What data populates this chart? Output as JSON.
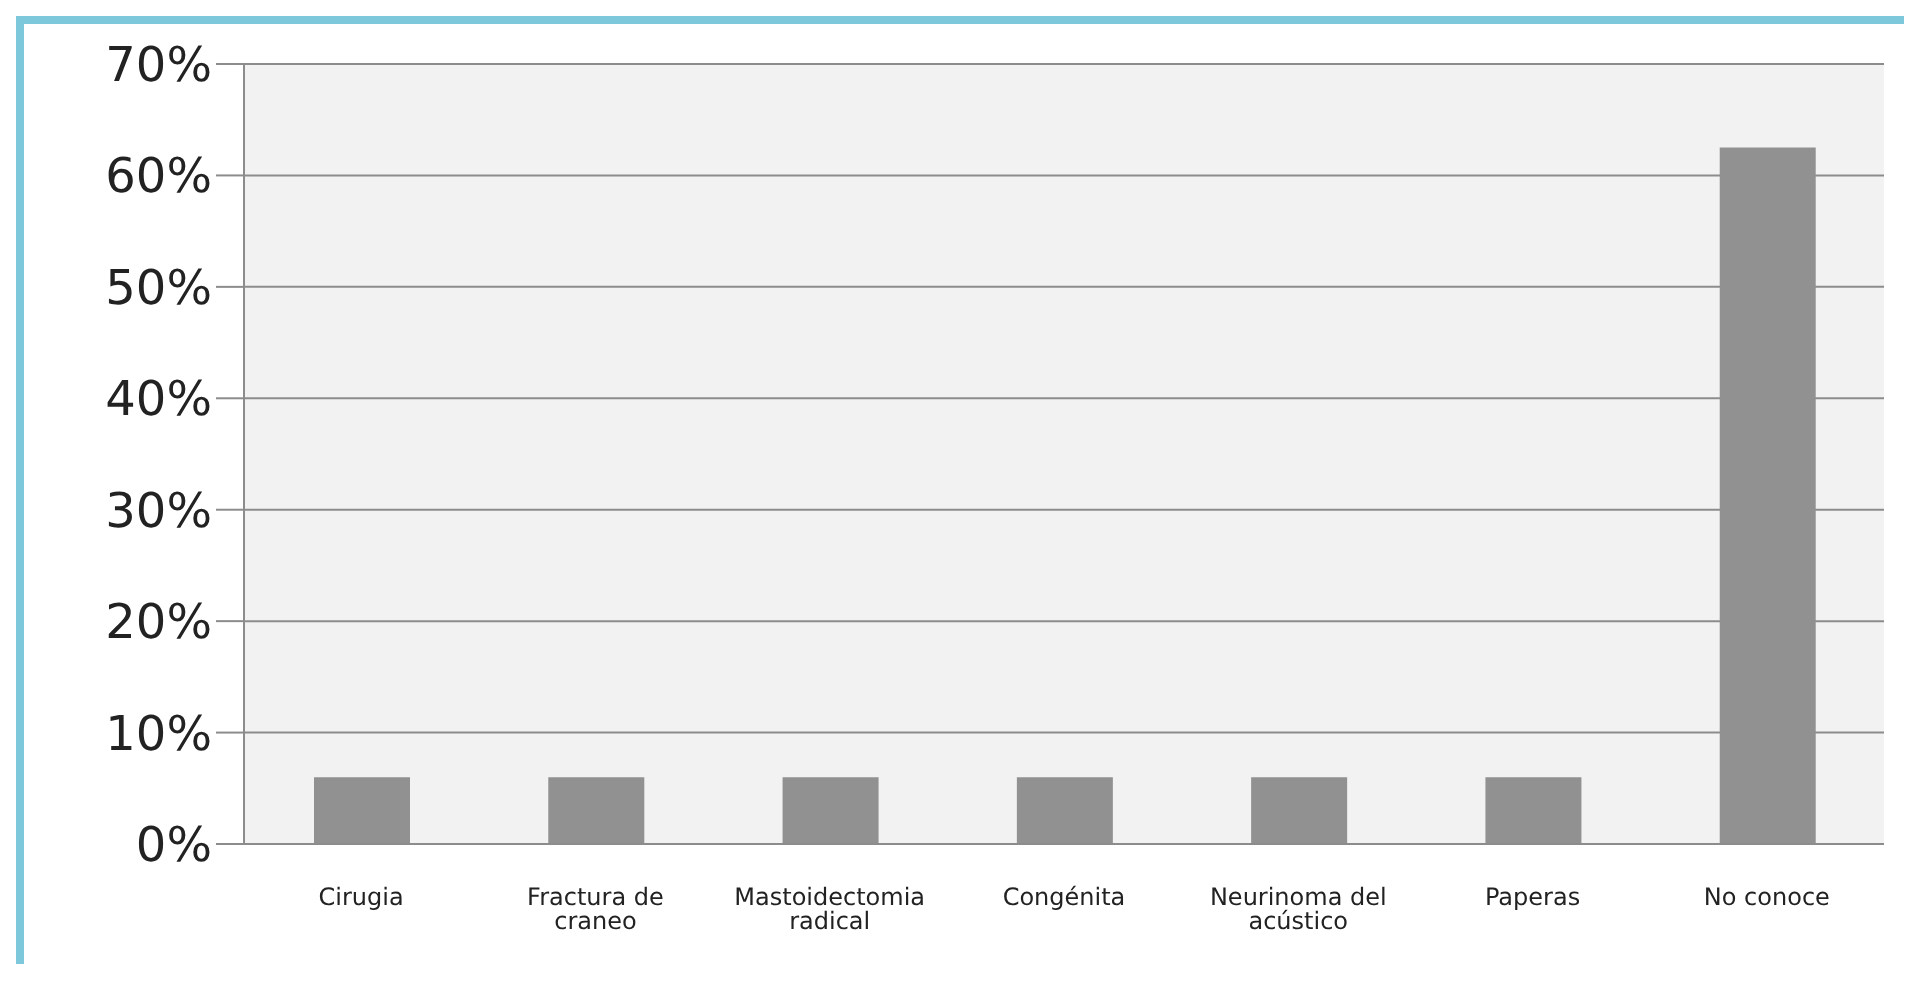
{
  "chart_data": {
    "type": "bar",
    "categories": [
      "Cirugia",
      "Fractura de craneo",
      "Mastoidectomia radical",
      "Congénita",
      "Neurinoma del acústico",
      "Paperas",
      "No conoce"
    ],
    "values": [
      6,
      6,
      6,
      6,
      6,
      6,
      62.5
    ],
    "color": "#919191",
    "ylim": [
      0,
      70
    ],
    "yticks": [
      {
        "value": 0,
        "label": "0%"
      },
      {
        "value": 10,
        "label": "10%"
      },
      {
        "value": 20,
        "label": "20%"
      },
      {
        "value": 30,
        "label": "30%"
      },
      {
        "value": 40,
        "label": "40%"
      },
      {
        "value": 50,
        "label": "50%"
      },
      {
        "value": 60,
        "label": "60%"
      },
      {
        "value": 70,
        "label": "70%"
      }
    ],
    "grid": "y"
  }
}
